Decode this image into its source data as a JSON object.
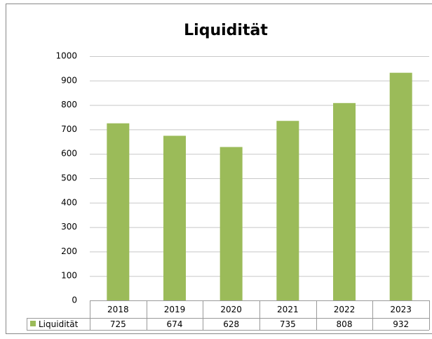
{
  "chart_data": {
    "type": "bar",
    "title": "Liquidität",
    "categories": [
      "2018",
      "2019",
      "2020",
      "2021",
      "2022",
      "2023"
    ],
    "series": [
      {
        "name": "Liquidität",
        "color": "#9bbb59",
        "values": [
          725,
          674,
          628,
          735,
          808,
          932
        ]
      }
    ],
    "ylim": [
      0,
      1000
    ],
    "yticks": [
      0,
      100,
      200,
      300,
      400,
      500,
      600,
      700,
      800,
      900,
      1000
    ],
    "grid": true,
    "data_table": true
  }
}
